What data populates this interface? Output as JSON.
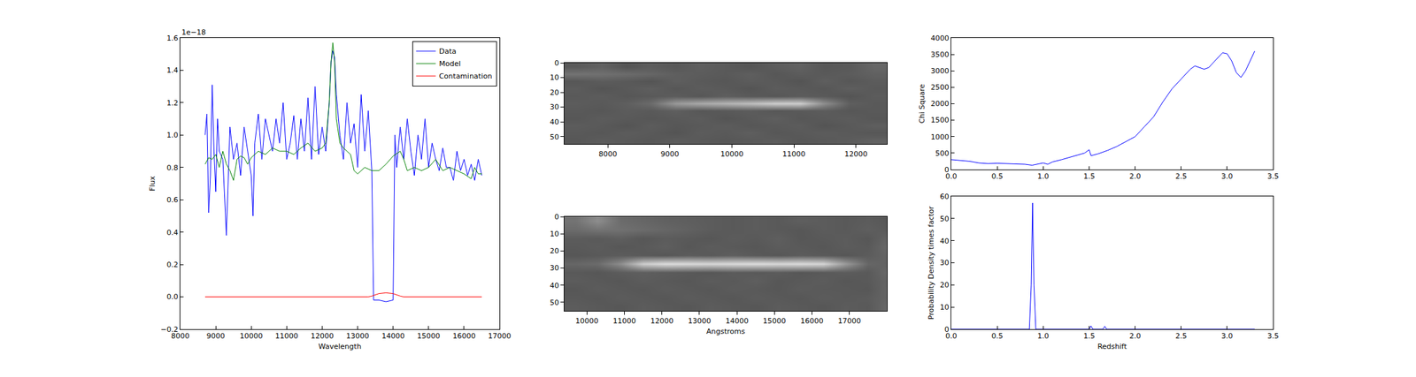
{
  "chart_data": [
    {
      "type": "line",
      "xlabel": "Wavelength",
      "ylabel": "Flux",
      "annotations": [
        {
          "text": "1e−18"
        }
      ],
      "legend": "upper right",
      "xlim": [
        8000,
        17000
      ],
      "xticks": [
        8000,
        9000,
        10000,
        11000,
        12000,
        13000,
        14000,
        15000,
        16000,
        17000
      ],
      "ylim": [
        -0.2,
        1.6
      ],
      "yticks": [
        {
          "value": -0.2,
          "label": "−0.2"
        },
        {
          "value": 0,
          "label": "0.0"
        },
        {
          "value": 0.2,
          "label": "0.2"
        },
        {
          "value": 0.4,
          "label": "0.4"
        },
        {
          "value": 0.6,
          "label": "0.6"
        },
        {
          "value": 0.8,
          "label": "0.8"
        },
        {
          "value": 1.0,
          "label": "1.0"
        },
        {
          "value": 1.2,
          "label": "1.2"
        },
        {
          "value": 1.4,
          "label": "1.4"
        },
        {
          "value": 1.6,
          "label": "1.6"
        }
      ],
      "series": [
        {
          "name": "Data",
          "color": "#0000ff",
          "x": [
            8700,
            8750,
            8800,
            8850,
            8900,
            8950,
            9000,
            9050,
            9100,
            9200,
            9300,
            9350,
            9400,
            9500,
            9600,
            9700,
            9800,
            9900,
            10000,
            10050,
            10100,
            10200,
            10300,
            10400,
            10500,
            10600,
            10700,
            10800,
            10900,
            11000,
            11100,
            11200,
            11300,
            11400,
            11500,
            11600,
            11700,
            11800,
            11900,
            12000,
            12100,
            12200,
            12250,
            12300,
            12350,
            12400,
            12500,
            12600,
            12700,
            12800,
            12900,
            13000,
            13100,
            13200,
            13300,
            13400,
            13450,
            13600,
            13800,
            14000,
            14050,
            14100,
            14200,
            14300,
            14400,
            14500,
            14600,
            14700,
            14800,
            14900,
            15000,
            15100,
            15200,
            15300,
            15400,
            15500,
            15600,
            15700,
            15800,
            15900,
            16000,
            16100,
            16200,
            16300,
            16400,
            16500
          ],
          "values": [
            1.0,
            1.13,
            0.52,
            0.75,
            1.31,
            0.9,
            0.65,
            1.1,
            0.9,
            0.85,
            0.38,
            0.7,
            1.05,
            0.85,
            0.95,
            0.75,
            1.05,
            0.9,
            0.75,
            0.5,
            0.95,
            1.13,
            0.85,
            1.1,
            1.0,
            0.9,
            1.1,
            0.95,
            1.2,
            0.85,
            0.95,
            1.12,
            0.85,
            1.1,
            0.9,
            1.23,
            0.85,
            1.3,
            0.88,
            1.05,
            0.9,
            1.2,
            1.45,
            1.52,
            1.48,
            1.25,
            1.0,
            0.85,
            1.2,
            0.95,
            1.07,
            0.8,
            1.25,
            0.9,
            1.15,
            0.78,
            -0.02,
            -0.02,
            -0.03,
            -0.02,
            1.0,
            0.8,
            1.05,
            0.85,
            1.1,
            0.9,
            0.75,
            1.0,
            0.85,
            1.1,
            0.8,
            0.95,
            0.85,
            0.78,
            0.92,
            0.8,
            0.8,
            0.72,
            0.9,
            0.78,
            0.85,
            0.75,
            0.82,
            0.72,
            0.85,
            0.75
          ]
        },
        {
          "name": "Model",
          "color": "#008000",
          "x": [
            8700,
            8800,
            8900,
            9000,
            9100,
            9200,
            9300,
            9400,
            9500,
            9600,
            9700,
            9800,
            9900,
            10000,
            10200,
            10400,
            10600,
            10800,
            11000,
            11200,
            11400,
            11600,
            11800,
            12000,
            12100,
            12200,
            12250,
            12300,
            12350,
            12400,
            12500,
            12600,
            12700,
            12800,
            12900,
            13000,
            13200,
            13400,
            13600,
            13800,
            14000,
            14200,
            14300,
            14400,
            14600,
            14800,
            15000,
            15200,
            15400,
            15600,
            15800,
            16000,
            16200,
            16300,
            16400,
            16500
          ],
          "values": [
            0.82,
            0.86,
            0.85,
            0.88,
            0.8,
            0.9,
            0.82,
            0.78,
            0.72,
            0.85,
            0.87,
            0.86,
            0.82,
            0.86,
            0.9,
            0.88,
            0.92,
            0.9,
            0.9,
            0.88,
            0.92,
            0.95,
            0.9,
            0.92,
            0.95,
            1.2,
            1.45,
            1.57,
            1.45,
            1.1,
            0.95,
            0.92,
            0.9,
            0.88,
            0.78,
            0.76,
            0.8,
            0.78,
            0.78,
            0.82,
            0.87,
            0.9,
            0.85,
            0.78,
            0.8,
            0.78,
            0.8,
            0.85,
            0.78,
            0.8,
            0.78,
            0.76,
            0.73,
            0.8,
            0.76,
            0.76
          ]
        },
        {
          "name": "Contamination",
          "color": "#ff0000",
          "x": [
            8700,
            13300,
            13400,
            13600,
            13800,
            14000,
            14200,
            14300,
            16500
          ],
          "values": [
            0,
            0,
            0.005,
            0.02,
            0.025,
            0.02,
            0.005,
            0,
            0
          ]
        }
      ]
    },
    {
      "type": "heatmap",
      "color": "gray",
      "xlim": [
        7300,
        12500
      ],
      "xticks": [
        8000,
        9000,
        10000,
        11000,
        12000
      ],
      "ylim": [
        55,
        0
      ],
      "yticks": [
        0,
        10,
        20,
        30,
        40,
        50
      ],
      "zlim": [
        0,
        1
      ],
      "x": [
        7500,
        7900,
        8300,
        8700,
        9100,
        9500,
        9900,
        10300,
        10700,
        11100,
        11500,
        11900,
        12300
      ],
      "y": [
        2.5,
        7.5,
        12.5,
        17.5,
        22.5,
        27.5,
        32.5,
        37.5,
        42.5,
        47.5,
        52.5
      ],
      "z": [
        [
          0.35,
          0.38,
          0.33,
          0.36,
          0.34,
          0.37,
          0.35,
          0.33,
          0.36,
          0.38,
          0.34,
          0.35,
          0.4
        ],
        [
          0.45,
          0.44,
          0.42,
          0.4,
          0.37,
          0.36,
          0.35,
          0.37,
          0.34,
          0.36,
          0.35,
          0.36,
          0.38
        ],
        [
          0.34,
          0.36,
          0.35,
          0.33,
          0.37,
          0.35,
          0.34,
          0.36,
          0.35,
          0.33,
          0.37,
          0.34,
          0.36
        ],
        [
          0.36,
          0.33,
          0.35,
          0.37,
          0.34,
          0.36,
          0.35,
          0.33,
          0.36,
          0.35,
          0.34,
          0.37,
          0.35
        ],
        [
          0.35,
          0.36,
          0.34,
          0.35,
          0.36,
          0.34,
          0.37,
          0.35,
          0.34,
          0.36,
          0.35,
          0.33,
          0.36
        ],
        [
          0.36,
          0.35,
          0.37,
          0.42,
          0.6,
          0.66,
          0.7,
          0.74,
          0.8,
          0.8,
          0.55,
          0.37,
          0.35
        ],
        [
          0.35,
          0.34,
          0.36,
          0.35,
          0.37,
          0.34,
          0.35,
          0.36,
          0.34,
          0.35,
          0.36,
          0.34,
          0.35
        ],
        [
          0.34,
          0.36,
          0.35,
          0.34,
          0.35,
          0.36,
          0.33,
          0.35,
          0.37,
          0.34,
          0.35,
          0.36,
          0.34
        ],
        [
          0.36,
          0.35,
          0.33,
          0.36,
          0.34,
          0.35,
          0.36,
          0.34,
          0.35,
          0.36,
          0.33,
          0.35,
          0.37
        ],
        [
          0.35,
          0.34,
          0.36,
          0.35,
          0.33,
          0.36,
          0.35,
          0.37,
          0.34,
          0.35,
          0.36,
          0.35,
          0.34
        ],
        [
          0.34,
          0.36,
          0.35,
          0.34,
          0.36,
          0.35,
          0.34,
          0.35,
          0.36,
          0.34,
          0.35,
          0.36,
          0.38
        ]
      ]
    },
    {
      "type": "heatmap",
      "color": "gray",
      "xlabel": "Angstroms",
      "xlim": [
        9400,
        18000
      ],
      "xticks": [
        10000,
        11000,
        12000,
        13000,
        14000,
        15000,
        16000,
        17000
      ],
      "ylim": [
        55,
        0
      ],
      "yticks": [
        0,
        10,
        20,
        30,
        40,
        50
      ],
      "zlim": [
        0,
        1
      ],
      "x": [
        9700,
        10300,
        10900,
        11500,
        12100,
        12700,
        13300,
        13900,
        14500,
        15100,
        15700,
        16300,
        16900,
        17500,
        18100
      ],
      "y": [
        2.5,
        7.5,
        12.5,
        17.5,
        22.5,
        27.5,
        32.5,
        37.5,
        42.5,
        47.5,
        52.5
      ],
      "z": [
        [
          0.45,
          0.55,
          0.42,
          0.4,
          0.38,
          0.37,
          0.36,
          0.35,
          0.36,
          0.35,
          0.37,
          0.36,
          0.35,
          0.36,
          0.34
        ],
        [
          0.42,
          0.45,
          0.44,
          0.42,
          0.4,
          0.38,
          0.36,
          0.35,
          0.36,
          0.35,
          0.34,
          0.36,
          0.35,
          0.37,
          0.35
        ],
        [
          0.36,
          0.35,
          0.37,
          0.34,
          0.36,
          0.35,
          0.34,
          0.36,
          0.35,
          0.37,
          0.34,
          0.35,
          0.36,
          0.34,
          0.4
        ],
        [
          0.35,
          0.36,
          0.34,
          0.35,
          0.37,
          0.34,
          0.36,
          0.35,
          0.34,
          0.36,
          0.35,
          0.34,
          0.36,
          0.35,
          0.42
        ],
        [
          0.34,
          0.35,
          0.36,
          0.35,
          0.34,
          0.36,
          0.35,
          0.37,
          0.35,
          0.34,
          0.36,
          0.35,
          0.34,
          0.36,
          0.4
        ],
        [
          0.4,
          0.42,
          0.55,
          0.8,
          0.86,
          0.85,
          0.84,
          0.85,
          0.86,
          0.84,
          0.85,
          0.83,
          0.6,
          0.4,
          0.38
        ],
        [
          0.35,
          0.34,
          0.36,
          0.37,
          0.36,
          0.35,
          0.34,
          0.36,
          0.35,
          0.36,
          0.34,
          0.35,
          0.36,
          0.35,
          0.42
        ],
        [
          0.36,
          0.35,
          0.34,
          0.36,
          0.35,
          0.34,
          0.36,
          0.35,
          0.37,
          0.34,
          0.35,
          0.36,
          0.34,
          0.35,
          0.4
        ],
        [
          0.34,
          0.36,
          0.35,
          0.34,
          0.36,
          0.35,
          0.34,
          0.36,
          0.35,
          0.34,
          0.36,
          0.35,
          0.35,
          0.34,
          0.41
        ],
        [
          0.35,
          0.34,
          0.36,
          0.35,
          0.34,
          0.36,
          0.35,
          0.34,
          0.36,
          0.35,
          0.34,
          0.36,
          0.35,
          0.36,
          0.4
        ],
        [
          0.36,
          0.35,
          0.34,
          0.36,
          0.35,
          0.34,
          0.36,
          0.35,
          0.34,
          0.36,
          0.35,
          0.34,
          0.36,
          0.35,
          0.42
        ]
      ]
    },
    {
      "type": "line",
      "ylabel": "Chi Square",
      "xlim": [
        0,
        3.5
      ],
      "xticks": [
        {
          "value": 0,
          "label": "0.0"
        },
        {
          "value": 0.5,
          "label": "0.5"
        },
        {
          "value": 1.0,
          "label": "1.0"
        },
        {
          "value": 1.5,
          "label": "1.5"
        },
        {
          "value": 2.0,
          "label": "2.0"
        },
        {
          "value": 2.5,
          "label": "2.5"
        },
        {
          "value": 3.0,
          "label": "3.0"
        },
        {
          "value": 3.5,
          "label": "3.5"
        }
      ],
      "ylim": [
        0,
        4000
      ],
      "yticks": [
        0,
        500,
        1000,
        1500,
        2000,
        2500,
        3000,
        3500,
        4000
      ],
      "series": [
        {
          "color": "#0000ff",
          "x": [
            0,
            0.1,
            0.2,
            0.3,
            0.4,
            0.5,
            0.6,
            0.7,
            0.8,
            0.88,
            0.95,
            1.0,
            1.05,
            1.1,
            1.2,
            1.3,
            1.4,
            1.45,
            1.5,
            1.52,
            1.6,
            1.7,
            1.8,
            1.9,
            2.0,
            2.1,
            2.2,
            2.3,
            2.4,
            2.5,
            2.6,
            2.65,
            2.7,
            2.75,
            2.8,
            2.9,
            2.95,
            3.0,
            3.05,
            3.1,
            3.15,
            3.2,
            3.25,
            3.3
          ],
          "values": [
            300,
            280,
            250,
            200,
            180,
            190,
            180,
            170,
            160,
            130,
            170,
            200,
            160,
            230,
            300,
            380,
            450,
            500,
            600,
            420,
            480,
            580,
            700,
            850,
            1000,
            1300,
            1600,
            2050,
            2450,
            2750,
            3050,
            3150,
            3100,
            3050,
            3100,
            3400,
            3550,
            3520,
            3300,
            2950,
            2800,
            3000,
            3300,
            3600
          ]
        }
      ]
    },
    {
      "type": "line",
      "xlabel": "Redshift",
      "ylabel": "Probability Density times factor",
      "xlim": [
        0,
        3.5
      ],
      "xticks": [
        {
          "value": 0,
          "label": "0.0"
        },
        {
          "value": 0.5,
          "label": "0.5"
        },
        {
          "value": 1.0,
          "label": "1.0"
        },
        {
          "value": 1.5,
          "label": "1.5"
        },
        {
          "value": 2.0,
          "label": "2.0"
        },
        {
          "value": 2.5,
          "label": "2.5"
        },
        {
          "value": 3.0,
          "label": "3.0"
        },
        {
          "value": 3.5,
          "label": "3.5"
        }
      ],
      "ylim": [
        0,
        60
      ],
      "yticks": [
        0,
        10,
        20,
        30,
        40,
        50,
        60
      ],
      "series": [
        {
          "color": "#0000ff",
          "x": [
            0,
            0.85,
            0.87,
            0.885,
            0.9,
            0.92,
            1.5,
            1.52,
            1.54,
            1.65,
            1.67,
            1.69,
            3.3
          ],
          "values": [
            0,
            0,
            20,
            57,
            20,
            0,
            0,
            1.5,
            0,
            0,
            1.3,
            0,
            0
          ]
        }
      ]
    }
  ]
}
